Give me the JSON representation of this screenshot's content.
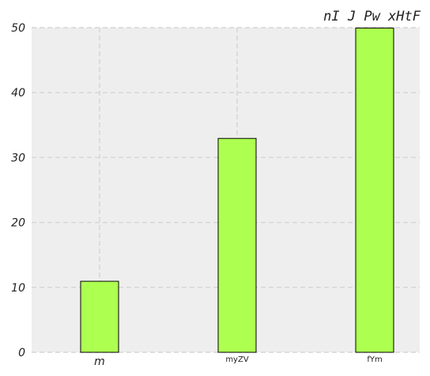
{
  "chart_data": {
    "type": "bar",
    "title": "nI J Pw xHtF",
    "xlabel": "",
    "ylabel": "",
    "categories": [
      "m",
      "myZV",
      "fYm"
    ],
    "values": [
      11,
      33,
      50
    ],
    "ylim": [
      0,
      50
    ],
    "yticks": [
      "0",
      "10",
      "20",
      "30",
      "40",
      "50"
    ],
    "grid": true,
    "legend": "none",
    "colors": {
      "bar_fill": "#adff50",
      "bar_edge": "#000000",
      "plot_background": "#eeeeee",
      "grid": "#d6d6d6"
    }
  }
}
